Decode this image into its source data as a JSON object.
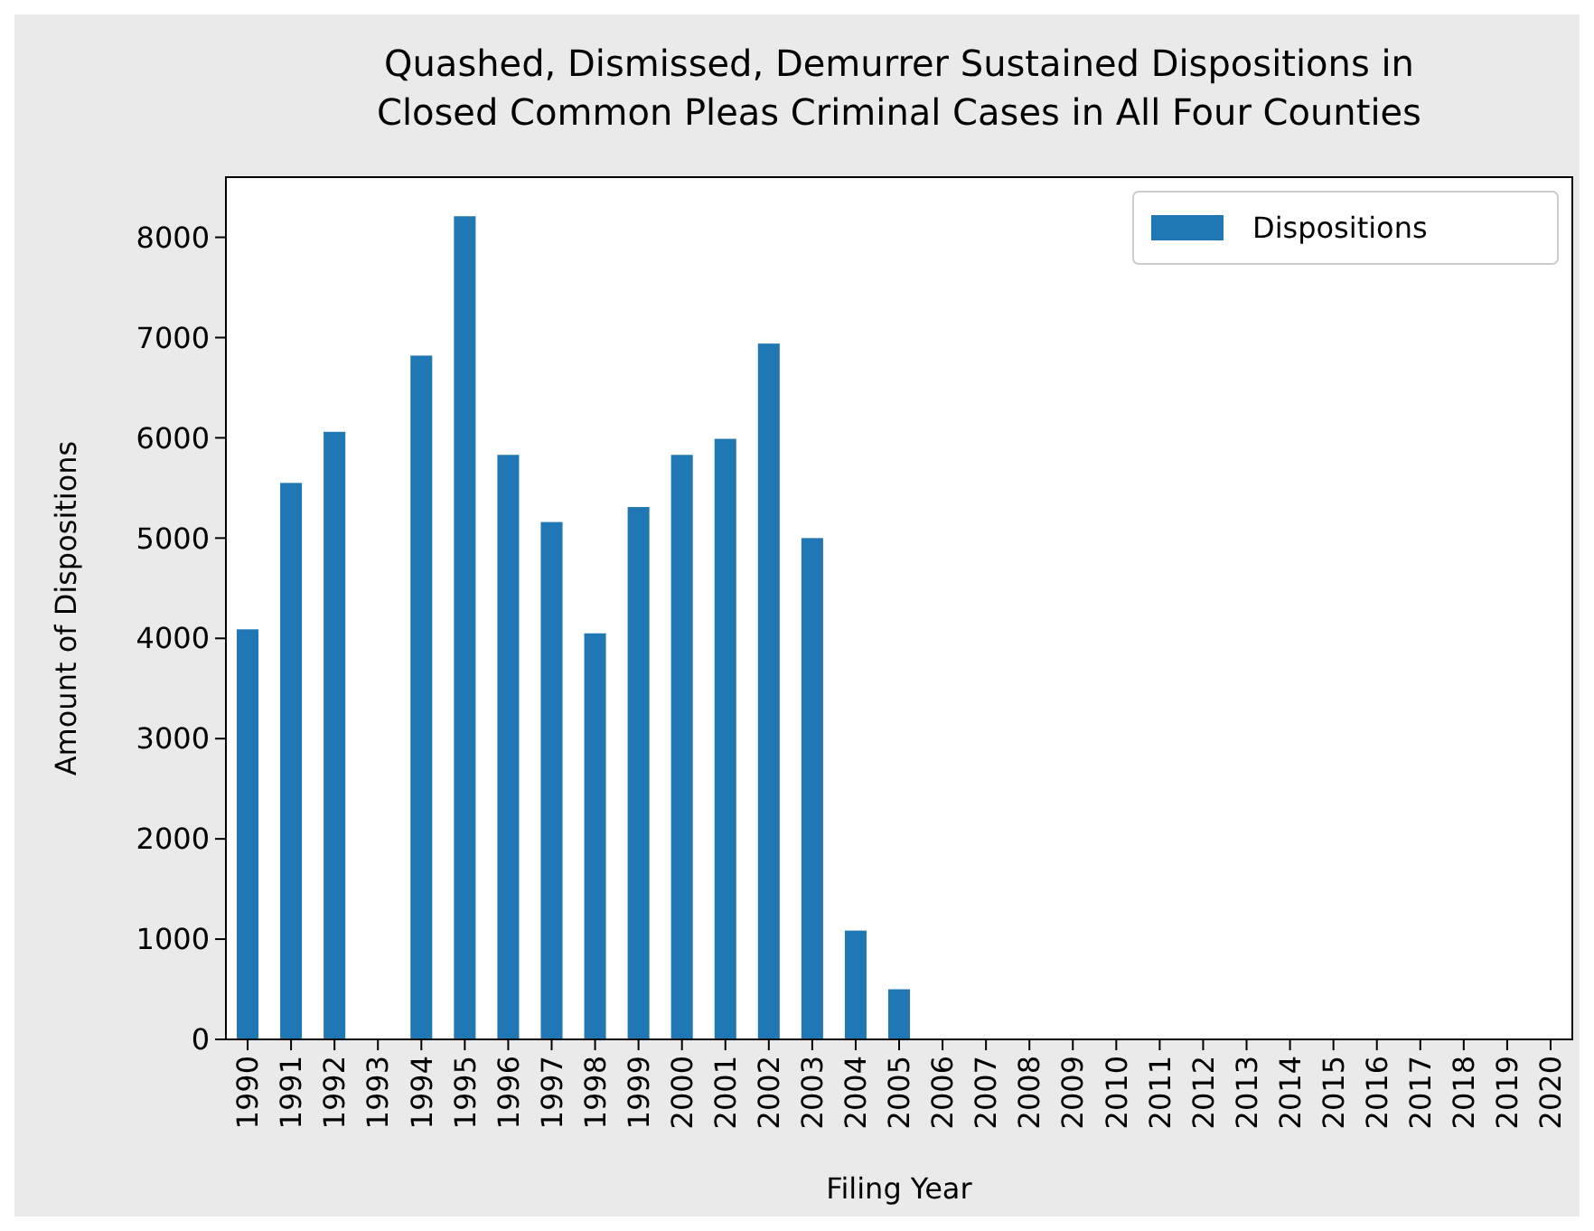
{
  "chart_data": {
    "type": "bar",
    "title": "Quashed, Dismissed, Demurrer Sustained Dispositions in\nClosed Common Pleas Criminal Cases in All Four Counties",
    "xlabel": "Filing Year",
    "ylabel": "Amount of Dispositions",
    "categories": [
      "1990",
      "1991",
      "1992",
      "1993",
      "1994",
      "1995",
      "1996",
      "1997",
      "1998",
      "1999",
      "2000",
      "2001",
      "2002",
      "2003",
      "2004",
      "2005",
      "2006",
      "2007",
      "2008",
      "2009",
      "2010",
      "2011",
      "2012",
      "2013",
      "2014",
      "2015",
      "2016",
      "2017",
      "2018",
      "2019",
      "2020"
    ],
    "series": [
      {
        "name": "Dispositions",
        "color": "#1f77b4",
        "values": [
          4090,
          5550,
          6060,
          0,
          6820,
          8210,
          5830,
          5160,
          4050,
          5310,
          5830,
          5990,
          6940,
          5000,
          1085,
          500,
          0,
          0,
          0,
          0,
          0,
          0,
          0,
          0,
          0,
          0,
          0,
          0,
          0,
          0,
          0
        ]
      }
    ],
    "ylim": [
      0,
      8600
    ],
    "yticks": [
      0,
      1000,
      2000,
      3000,
      4000,
      5000,
      6000,
      7000,
      8000
    ],
    "legend": "top right"
  }
}
